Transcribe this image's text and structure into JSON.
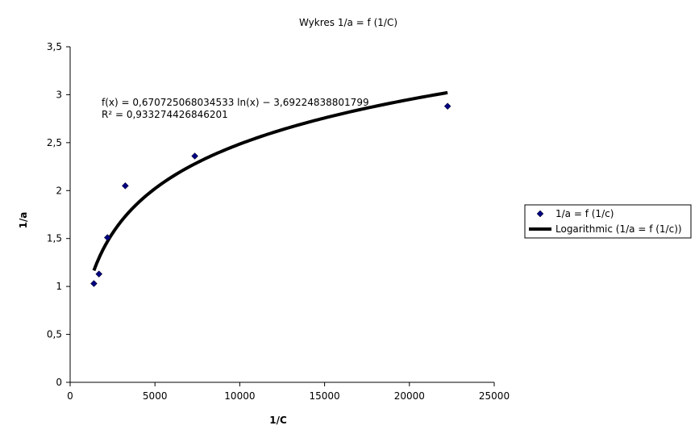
{
  "chart_data": {
    "type": "scatter",
    "title": "Wykres 1/a = f (1/C)",
    "xlabel": "1/C",
    "ylabel": "1/a",
    "xlim": [
      0,
      25000
    ],
    "ylim": [
      0,
      3.5
    ],
    "x_ticks": [
      0,
      5000,
      10000,
      15000,
      20000,
      25000
    ],
    "x_tick_labels": [
      "0",
      "5000",
      "10000",
      "15000",
      "20000",
      "25000"
    ],
    "y_ticks": [
      0,
      0.5,
      1,
      1.5,
      2,
      2.5,
      3,
      3.5
    ],
    "y_tick_labels": [
      "0",
      "0,5",
      "1",
      "1,5",
      "2",
      "2,5",
      "3",
      "3,5"
    ],
    "grid": false,
    "legend_position": "right",
    "series": [
      {
        "name": "1/a = f (1/c)",
        "kind": "scatter",
        "marker": "diamond",
        "color": "#000080",
        "points": [
          {
            "x": 1400,
            "y": 1.03
          },
          {
            "x": 1700,
            "y": 1.13
          },
          {
            "x": 2200,
            "y": 1.51
          },
          {
            "x": 3250,
            "y": 2.05
          },
          {
            "x": 7350,
            "y": 2.36
          },
          {
            "x": 22250,
            "y": 2.88
          }
        ]
      },
      {
        "name": "Logarithmic (1/a = f (1/c))",
        "kind": "trendline",
        "color": "#000000",
        "fit": {
          "type": "log",
          "a": 0.670725068034533,
          "b": -3.69224838801799
        },
        "x_range": [
          1400,
          22250
        ]
      }
    ],
    "annotations": [
      "f(x) = 0,670725068034533 ln(x) − 3,69224838801799",
      "R² = 0,933274426846201"
    ]
  }
}
